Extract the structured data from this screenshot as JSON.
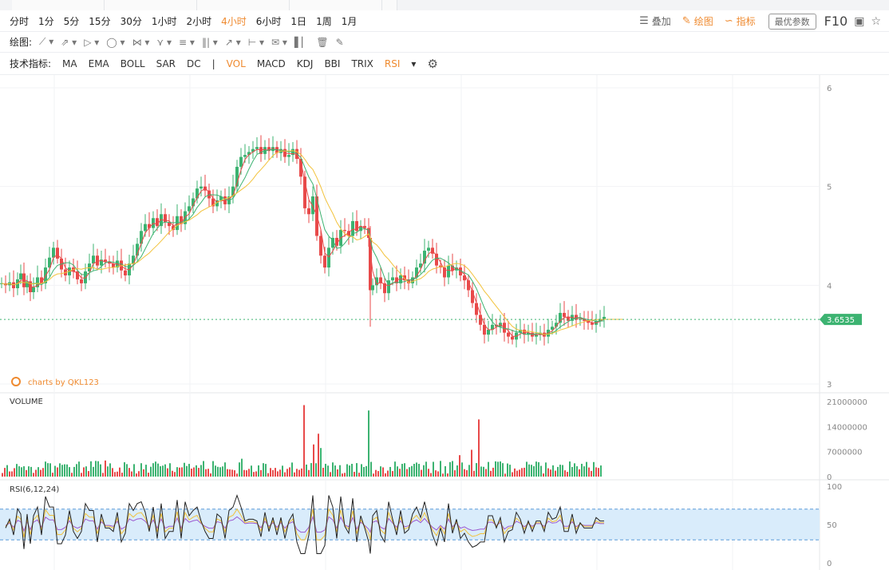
{
  "toolbar": {
    "periods": [
      "分时",
      "1分",
      "5分",
      "15分",
      "30分",
      "1小时",
      "2小时",
      "4小时",
      "6小时",
      "1日",
      "1周",
      "1月"
    ],
    "active_period": "4小时",
    "overlay_label": "叠加",
    "draw_label": "绘图",
    "indicator_label": "指标",
    "param_button": "最优参数",
    "f10_label": "F10"
  },
  "drawing": {
    "label": "绘图:",
    "tools": [
      "line-tool",
      "ray-tool",
      "channel-tool",
      "shape-tool",
      "fib-tool",
      "pattern-tool",
      "text-tool",
      "gann-tool",
      "arrow-tool",
      "measure-tool",
      "note-tool",
      "bars-tool",
      "trash-tool",
      "pen-tool"
    ]
  },
  "indicators": {
    "label": "技术指标:",
    "main": [
      "MA",
      "EMA",
      "BOLL",
      "SAR",
      "DC"
    ],
    "sub": [
      "VOL",
      "MACD",
      "KDJ",
      "BBI",
      "TRIX",
      "RSI"
    ],
    "active": [
      "VOL",
      "RSI"
    ]
  },
  "chart_data": {
    "type": "candlestick",
    "watermark": "charts by QKL123",
    "price_axis": {
      "ticks": [
        6,
        5,
        4,
        3
      ],
      "range": [
        3,
        6
      ]
    },
    "last_price": "3.6535",
    "last_price_value": 3.6535,
    "close_points": [
      [
        0,
        4.02
      ],
      [
        5,
        4.0
      ],
      [
        10,
        4.03
      ],
      [
        15,
        3.97
      ],
      [
        20,
        4.06
      ],
      [
        24,
        4.12
      ],
      [
        28,
        3.98
      ],
      [
        32,
        4.04
      ],
      [
        36,
        3.93
      ],
      [
        40,
        3.98
      ],
      [
        45,
        4.08
      ],
      [
        50,
        4.02
      ],
      [
        55,
        4.18
      ],
      [
        60,
        4.28
      ],
      [
        65,
        4.38
      ],
      [
        70,
        4.27
      ],
      [
        75,
        4.16
      ],
      [
        80,
        4.1
      ],
      [
        85,
        4.18
      ],
      [
        90,
        4.14
      ],
      [
        95,
        4.06
      ],
      [
        100,
        4.02
      ],
      [
        105,
        4.14
      ],
      [
        110,
        4.22
      ],
      [
        115,
        4.3
      ],
      [
        120,
        4.2
      ],
      [
        125,
        4.26
      ],
      [
        130,
        4.24
      ],
      [
        135,
        4.22
      ],
      [
        140,
        4.18
      ],
      [
        145,
        4.25
      ],
      [
        150,
        4.15
      ],
      [
        155,
        4.1
      ],
      [
        160,
        4.22
      ],
      [
        165,
        4.3
      ],
      [
        170,
        4.42
      ],
      [
        175,
        4.55
      ],
      [
        180,
        4.62
      ],
      [
        185,
        4.58
      ],
      [
        190,
        4.68
      ],
      [
        195,
        4.6
      ],
      [
        200,
        4.72
      ],
      [
        205,
        4.64
      ],
      [
        210,
        4.6
      ],
      [
        215,
        4.56
      ],
      [
        220,
        4.7
      ],
      [
        225,
        4.62
      ],
      [
        230,
        4.75
      ],
      [
        235,
        4.8
      ],
      [
        240,
        4.88
      ],
      [
        245,
        4.98
      ],
      [
        250,
        5.0
      ],
      [
        255,
        4.96
      ],
      [
        260,
        4.88
      ],
      [
        265,
        4.8
      ],
      [
        270,
        4.86
      ],
      [
        275,
        4.9
      ],
      [
        280,
        4.82
      ],
      [
        285,
        4.9
      ],
      [
        290,
        5.0
      ],
      [
        295,
        5.2
      ],
      [
        300,
        5.3
      ],
      [
        305,
        5.32
      ],
      [
        310,
        5.35
      ],
      [
        315,
        5.38
      ],
      [
        320,
        5.4
      ],
      [
        325,
        5.33
      ],
      [
        330,
        5.4
      ],
      [
        335,
        5.36
      ],
      [
        340,
        5.4
      ],
      [
        345,
        5.34
      ],
      [
        350,
        5.38
      ],
      [
        355,
        5.3
      ],
      [
        360,
        5.32
      ],
      [
        365,
        5.38
      ],
      [
        370,
        5.28
      ],
      [
        375,
        5.1
      ],
      [
        380,
        4.78
      ],
      [
        385,
        4.72
      ],
      [
        390,
        4.9
      ],
      [
        395,
        4.5
      ],
      [
        400,
        4.3
      ],
      [
        405,
        4.18
      ],
      [
        410,
        4.38
      ],
      [
        415,
        4.48
      ],
      [
        420,
        4.4
      ],
      [
        425,
        4.56
      ],
      [
        430,
        4.55
      ],
      [
        435,
        4.5
      ],
      [
        440,
        4.65
      ],
      [
        445,
        4.55
      ],
      [
        450,
        4.6
      ],
      [
        455,
        4.58
      ],
      [
        460,
        4.48
      ],
      [
        462,
        3.95
      ],
      [
        465,
        4.0
      ],
      [
        470,
        4.08
      ],
      [
        475,
        4.02
      ],
      [
        480,
        3.92
      ],
      [
        485,
        4.05
      ],
      [
        490,
        4.08
      ],
      [
        495,
        4.02
      ],
      [
        500,
        4.1
      ],
      [
        505,
        4.05
      ],
      [
        510,
        4.02
      ],
      [
        515,
        4.08
      ],
      [
        520,
        4.18
      ],
      [
        525,
        4.22
      ],
      [
        530,
        4.35
      ],
      [
        535,
        4.38
      ],
      [
        540,
        4.32
      ],
      [
        545,
        4.2
      ],
      [
        550,
        4.18
      ],
      [
        555,
        4.08
      ],
      [
        560,
        4.2
      ],
      [
        565,
        4.15
      ],
      [
        570,
        4.18
      ],
      [
        575,
        4.1
      ],
      [
        580,
        4.05
      ],
      [
        585,
        3.95
      ],
      [
        590,
        3.82
      ],
      [
        595,
        3.7
      ],
      [
        600,
        3.6
      ],
      [
        605,
        3.5
      ],
      [
        610,
        3.55
      ],
      [
        615,
        3.6
      ],
      [
        620,
        3.58
      ],
      [
        625,
        3.62
      ],
      [
        630,
        3.52
      ],
      [
        635,
        3.48
      ],
      [
        640,
        3.45
      ],
      [
        645,
        3.52
      ],
      [
        650,
        3.55
      ],
      [
        655,
        3.5
      ],
      [
        660,
        3.52
      ],
      [
        665,
        3.48
      ],
      [
        670,
        3.5
      ],
      [
        675,
        3.52
      ],
      [
        680,
        3.48
      ],
      [
        685,
        3.55
      ],
      [
        690,
        3.58
      ],
      [
        695,
        3.62
      ],
      [
        700,
        3.72
      ],
      [
        705,
        3.68
      ],
      [
        710,
        3.64
      ],
      [
        715,
        3.7
      ],
      [
        720,
        3.65
      ],
      [
        725,
        3.66
      ],
      [
        730,
        3.64
      ],
      [
        735,
        3.62
      ],
      [
        740,
        3.6
      ],
      [
        745,
        3.64
      ],
      [
        750,
        3.66
      ],
      [
        755,
        3.68
      ]
    ],
    "volume_axis": {
      "ticks": [
        "21000000",
        "14000000",
        "7000000",
        "0"
      ],
      "max": 21000000
    },
    "volume_label": "VOLUME",
    "rsi_axis": {
      "ticks": [
        100,
        50,
        0
      ]
    },
    "rsi_label": "RSI(6,12,24)",
    "rsi_band": [
      30,
      70
    ],
    "colors": {
      "up": "#3cb371",
      "down": "#e84a4a",
      "ma1": "#e84a4a",
      "ma2": "#3cb371",
      "ma3": "#f2c23b",
      "rsi6": "#222222",
      "rsi12": "#f2c23b",
      "rsi24": "#9b59d0",
      "band": "#d9ecfb",
      "last": "#3cb371",
      "accent": "#ef8a2f"
    }
  }
}
